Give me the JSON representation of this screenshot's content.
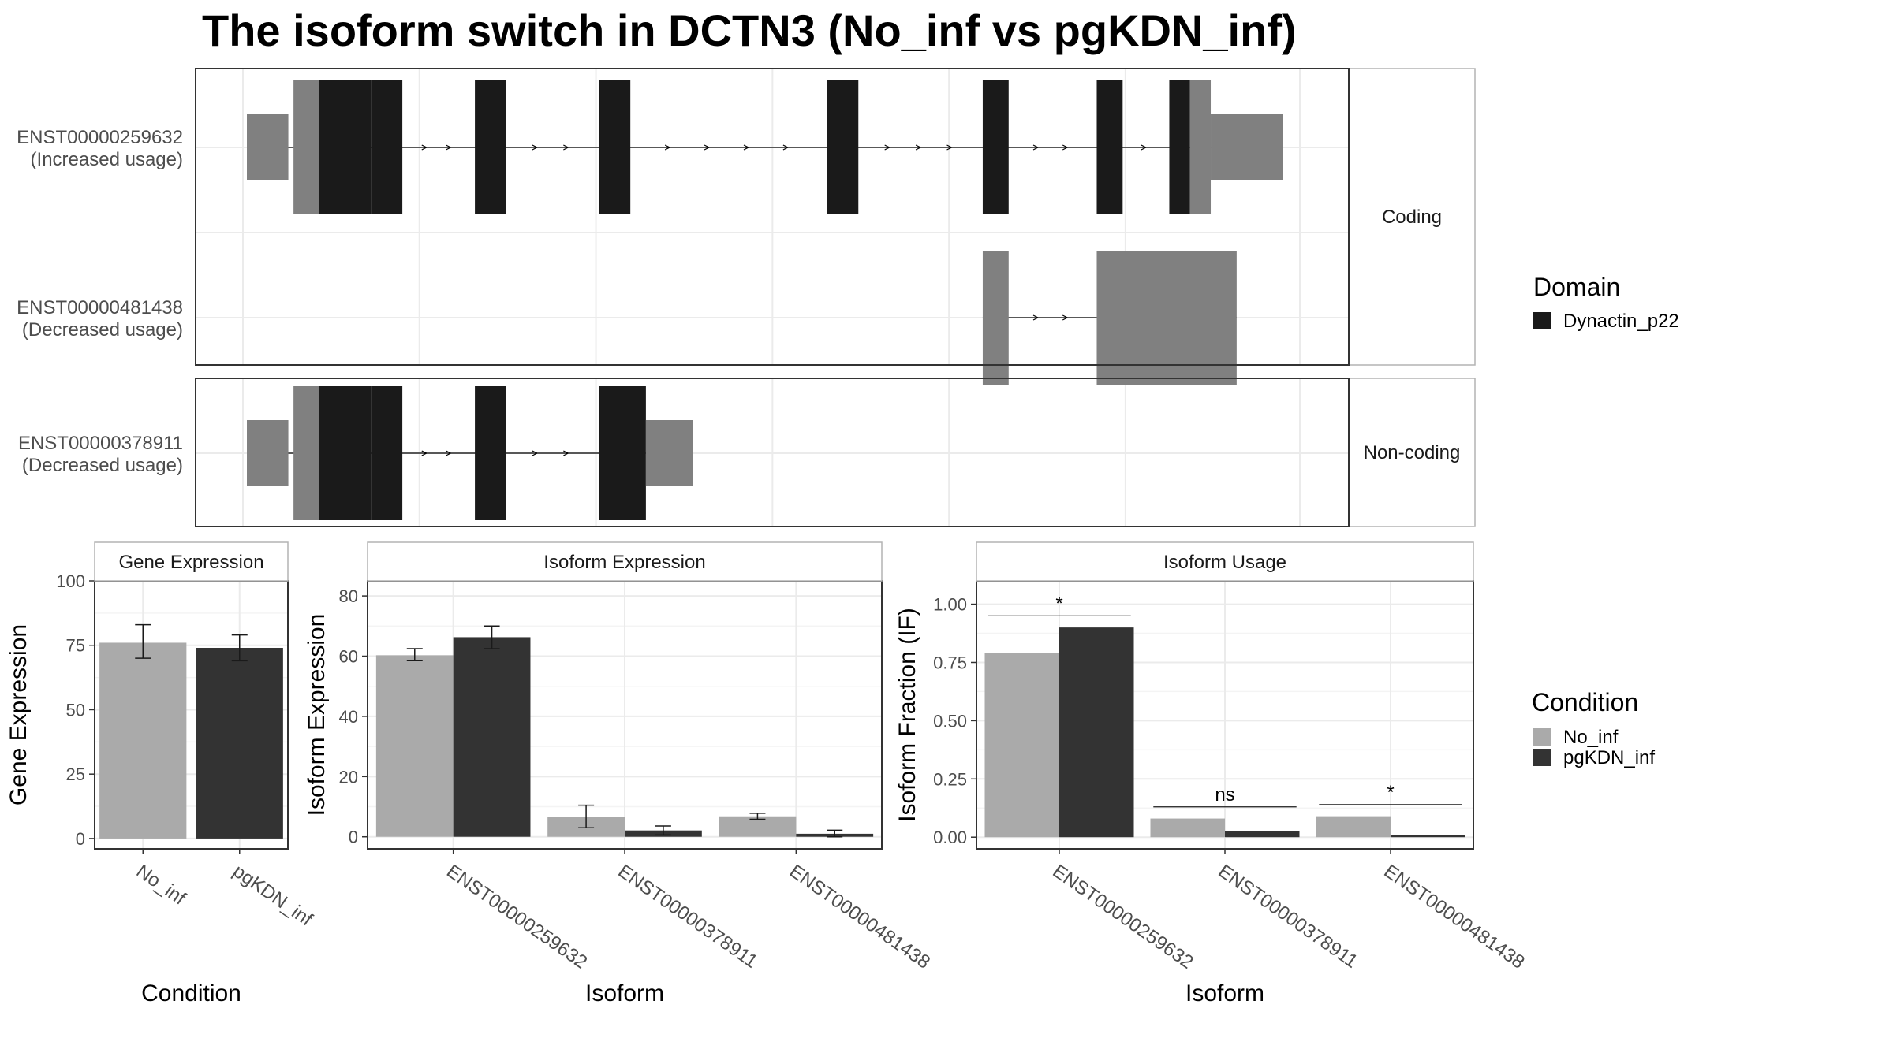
{
  "title": "The isoform switch in DCTN3 (No_inf vs pgKDN_inf)",
  "colors": {
    "domain": "#1a1a1a",
    "utr": "#808080",
    "no_inf": "#aaaaaa",
    "pgkdn_inf": "#333333",
    "grid": "#ebebeb",
    "panel_border": "#333333",
    "strip_border": "#b3b3b3"
  },
  "structure": {
    "facets": [
      {
        "label": "Coding",
        "transcripts": [
          "ENST00000259632",
          "ENST00000481438"
        ]
      },
      {
        "label": "Non-coding",
        "transcripts": [
          "ENST00000378911"
        ]
      }
    ],
    "transcripts": [
      {
        "id": "ENST00000259632",
        "usage": "(Increased usage)",
        "exons": [
          [
            0,
            4
          ],
          [
            4.5,
            7
          ],
          [
            7,
            12
          ],
          [
            12,
            15
          ],
          [
            22,
            25
          ],
          [
            34,
            37
          ],
          [
            56,
            59
          ],
          [
            71,
            73.5
          ],
          [
            82,
            84.5
          ],
          [
            89,
            91
          ],
          [
            91,
            93
          ],
          [
            93,
            100
          ]
        ],
        "types": [
          "utr",
          "utr",
          "domain",
          "domain",
          "domain",
          "domain",
          "domain",
          "domain",
          "domain",
          "domain",
          "utr",
          "utr"
        ]
      },
      {
        "id": "ENST00000481438",
        "usage": "(Decreased usage)",
        "exons": [
          [
            71,
            73.5
          ],
          [
            82,
            95.5
          ]
        ],
        "types": [
          "utr",
          "utr"
        ]
      },
      {
        "id": "ENST00000378911",
        "usage": "(Decreased usage)",
        "exons": [
          [
            0,
            4
          ],
          [
            4.5,
            7
          ],
          [
            7,
            12
          ],
          [
            12,
            15
          ],
          [
            22,
            25
          ],
          [
            34,
            38.5
          ],
          [
            38.5,
            43
          ]
        ],
        "types": [
          "utr",
          "utr",
          "domain",
          "domain",
          "domain",
          "domain",
          "utr"
        ]
      }
    ]
  },
  "legends": {
    "domain": {
      "title": "Domain",
      "items": [
        {
          "label": "Dynactin_p22",
          "color": "#1a1a1a"
        }
      ]
    },
    "condition": {
      "title": "Condition",
      "items": [
        {
          "label": "No_inf",
          "color": "#aaaaaa"
        },
        {
          "label": "pgKDN_inf",
          "color": "#333333"
        }
      ]
    }
  },
  "chart_data": [
    {
      "type": "bar",
      "title": "Gene Expression",
      "xlabel": "Condition",
      "ylabel": "Gene Expression",
      "categories": [
        "No_inf",
        "pgKDN_inf"
      ],
      "series": [
        {
          "name": "Gene Expression",
          "values": [
            76,
            74
          ],
          "errors": [
            [
              70,
              83
            ],
            [
              69,
              79
            ]
          ]
        }
      ],
      "ylim": [
        -4,
        100
      ],
      "yticks": [
        0,
        25,
        50,
        75,
        100
      ]
    },
    {
      "type": "bar",
      "title": "Isoform Expression",
      "xlabel": "Isoform",
      "ylabel": "Isoform Expression",
      "categories": [
        "ENST00000259632",
        "ENST00000378911",
        "ENST00000481438"
      ],
      "series": [
        {
          "name": "No_inf",
          "values": [
            60.3,
            6.7,
            6.8
          ],
          "errors": [
            [
              58.5,
              62.5
            ],
            [
              3,
              10.5
            ],
            [
              5.8,
              7.8
            ]
          ]
        },
        {
          "name": "pgKDN_inf",
          "values": [
            66.3,
            2.1,
            1.0
          ],
          "errors": [
            [
              62.5,
              70
            ],
            [
              0.6,
              3.6
            ],
            [
              0,
              2.2
            ]
          ]
        }
      ],
      "ylim": [
        -4,
        85
      ],
      "yticks": [
        0,
        20,
        40,
        60,
        80
      ]
    },
    {
      "type": "bar",
      "title": "Isoform Usage",
      "xlabel": "Isoform",
      "ylabel": "Isoform Fraction (IF)",
      "categories": [
        "ENST00000259632",
        "ENST00000378911",
        "ENST00000481438"
      ],
      "series": [
        {
          "name": "No_inf",
          "values": [
            0.79,
            0.08,
            0.09
          ]
        },
        {
          "name": "pgKDN_inf",
          "values": [
            0.9,
            0.025,
            0.01
          ]
        }
      ],
      "significance": [
        "*",
        "ns",
        "*"
      ],
      "ylim": [
        -0.05,
        1.1
      ],
      "yticks": [
        "0.00",
        "0.25",
        "0.50",
        "0.75",
        "1.00"
      ]
    }
  ]
}
